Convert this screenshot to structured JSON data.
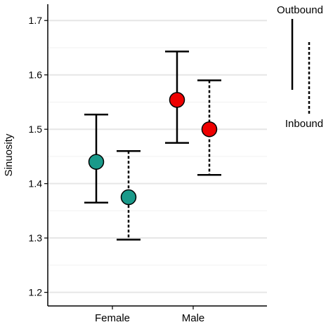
{
  "chart_data": {
    "type": "scatter",
    "title": "",
    "xlabel": "",
    "ylabel": "Sinuosity",
    "categories": [
      "Female",
      "Male"
    ],
    "ylim": [
      1.175,
      1.73
    ],
    "yticks": [
      1.2,
      1.3,
      1.4,
      1.5,
      1.6,
      1.7
    ],
    "grid": true,
    "legend": {
      "placement": "right",
      "top_label": "Outbound",
      "bottom_label": "Inbound"
    },
    "series": [
      {
        "name": "Outbound",
        "line_style": "solid",
        "points": [
          {
            "category": "Female",
            "mean": 1.44,
            "lower": 1.365,
            "upper": 1.527
          },
          {
            "category": "Male",
            "mean": 1.554,
            "lower": 1.475,
            "upper": 1.643
          }
        ]
      },
      {
        "name": "Inbound",
        "line_style": "dashed",
        "points": [
          {
            "category": "Female",
            "mean": 1.375,
            "lower": 1.297,
            "upper": 1.46
          },
          {
            "category": "Male",
            "mean": 1.5,
            "lower": 1.416,
            "upper": 1.59
          }
        ]
      }
    ],
    "colors": {
      "Female": "#1a9a8a",
      "Male": "#ee0000",
      "whisker": "#000000",
      "grid": "#e6e6e6"
    }
  }
}
